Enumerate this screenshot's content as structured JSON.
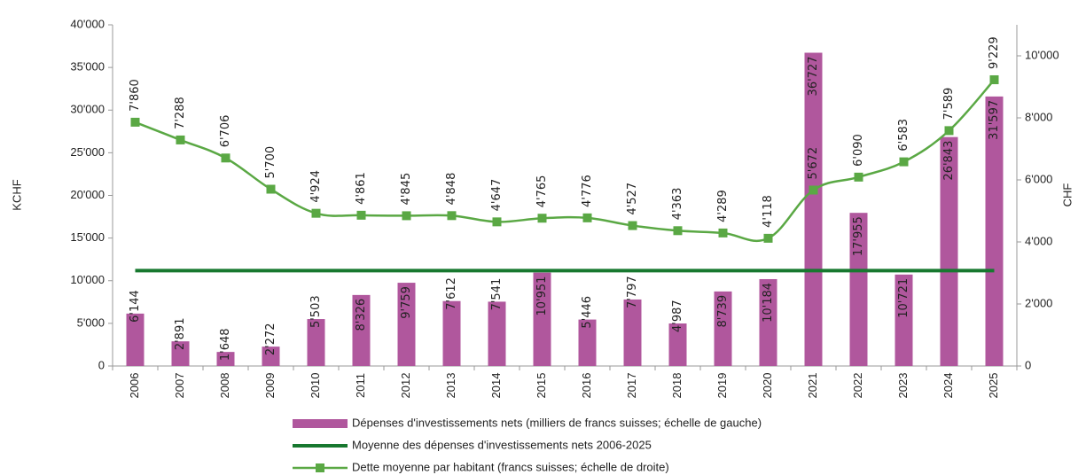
{
  "chart_data": {
    "type": "bar",
    "categories": [
      "2006",
      "2007",
      "2008",
      "2009",
      "2010",
      "2011",
      "2012",
      "2013",
      "2014",
      "2015",
      "2016",
      "2017",
      "2018",
      "2019",
      "2020",
      "2021",
      "2022",
      "2023",
      "2024",
      "2025"
    ],
    "series": [
      {
        "name": "Dépenses d'investissements nets (milliers de francs suisses; échelle de gauche)",
        "type": "bar",
        "color": "#b0579d",
        "values": [
          6144,
          2891,
          1648,
          2272,
          5503,
          8326,
          9759,
          7612,
          7541,
          10951,
          5446,
          7797,
          4987,
          8739,
          10184,
          36727,
          17955,
          10721,
          26843,
          31597
        ],
        "value_labels": [
          "6'144",
          "2'891",
          "1'648",
          "2'272",
          "5'503",
          "8'326",
          "9'759",
          "7'612",
          "7'541",
          "10'951",
          "5'446",
          "7'797",
          "4'987",
          "8'739",
          "10'184",
          "36'727",
          "17'955",
          "10'721",
          "26'843",
          "31'597"
        ]
      },
      {
        "name": "Moyenne des dépenses d'investissements nets 2006-2025",
        "type": "line",
        "color": "#17782f",
        "values": [
          11182,
          11182,
          11182,
          11182,
          11182,
          11182,
          11182,
          11182,
          11182,
          11182,
          11182,
          11182,
          11182,
          11182,
          11182,
          11182,
          11182,
          11182,
          11182,
          11182
        ]
      },
      {
        "name": "Dette moyenne par habitant (francs suisses; échelle de droite)",
        "type": "line",
        "axis": "y2",
        "color": "#5aa844",
        "marker": "square",
        "values": [
          7860,
          7288,
          6706,
          5700,
          4924,
          4861,
          4845,
          4848,
          4647,
          4765,
          4776,
          4527,
          4363,
          4289,
          4118,
          5672,
          6090,
          6583,
          7589,
          9229
        ],
        "value_labels": [
          "7'860",
          "7'288",
          "6'706",
          "5'700",
          "4'924",
          "4'861",
          "4'845",
          "4'848",
          "4'647",
          "4'765",
          "4'776",
          "4'527",
          "4'363",
          "4'289",
          "4'118",
          "5'672",
          "6'090",
          "6'583",
          "7'589",
          "9'229"
        ]
      }
    ],
    "ylabel": "KCHF",
    "y2label": "CHF",
    "ylim": [
      0,
      40000
    ],
    "yticks": [
      0,
      {
        "value": 5000,
        "label": "5'000"
      },
      {
        "value": 10000,
        "label": "10'000"
      },
      {
        "value": 15000,
        "label": "15'000"
      },
      {
        "value": 20000,
        "label": "20'000"
      },
      {
        "value": 25000,
        "label": "25'000"
      },
      {
        "value": 30000,
        "label": "30'000"
      },
      {
        "value": 35000,
        "label": "35'000"
      },
      {
        "value": 40000,
        "label": "40'000"
      }
    ],
    "y2lim": [
      0,
      11000
    ],
    "y2ticks": [
      0,
      {
        "value": 2000,
        "label": "2'000"
      },
      {
        "value": 4000,
        "label": "4'000"
      },
      {
        "value": 6000,
        "label": "6'000"
      },
      {
        "value": 8000,
        "label": "8'000"
      },
      {
        "value": 10000,
        "label": "10'000"
      }
    ],
    "grid": false,
    "legend": "bottom"
  }
}
